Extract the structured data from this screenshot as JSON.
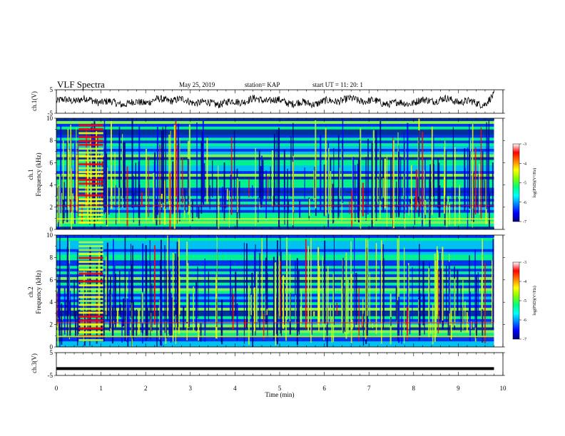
{
  "header": {
    "title": "VLF Spectra",
    "date": "May 25, 2019",
    "station": "station= KAP",
    "start": "start  UT  =   11: 20: 1"
  },
  "colors": {
    "scale": [
      "#00008b",
      "#0000ff",
      "#00bfff",
      "#00ff7f",
      "#adff2f",
      "#ffff00",
      "#ff7f00",
      "#ff0000"
    ],
    "trace": "#000000"
  },
  "chart_data": [
    {
      "type": "line",
      "panel": "ch1-waveform",
      "ylabel": "ch.1(V)",
      "ylim": [
        -5,
        5
      ],
      "yticks": [
        "5",
        "-5"
      ],
      "xlim": [
        0,
        10
      ],
      "description_of_series": "noisy voltage trace oscillating roughly between -3 and +3 V across 0–9.8 min",
      "x": [
        0,
        0.5,
        1.0,
        1.5,
        2.0,
        2.5,
        3.0,
        3.5,
        4.0,
        4.5,
        5.0,
        5.5,
        6.0,
        6.5,
        7.0,
        7.5,
        8.0,
        8.5,
        9.0,
        9.5,
        9.8
      ],
      "values": [
        1.5,
        -0.8,
        0.5,
        -1.5,
        1.0,
        -0.5,
        0.8,
        -1.2,
        1.2,
        -0.6,
        0.3,
        -1.4,
        1.1,
        -0.4,
        0.9,
        -1.0,
        0.6,
        -0.9,
        0.4,
        -1.1,
        3.5
      ]
    },
    {
      "type": "heatmap",
      "panel": "ch1-spectrogram",
      "ylabel": "ch.1",
      "ylabel2": "Frequency (kHz)",
      "ylim": [
        0,
        10
      ],
      "yticks": [
        "0",
        "2",
        "4",
        "6",
        "8",
        "10"
      ],
      "xlim": [
        0,
        10
      ],
      "colorbar": {
        "label": "log(PSD)(V²/Hz)",
        "range": [
          -7,
          -3
        ],
        "ticks": [
          "-3",
          "-4",
          "-5",
          "-6",
          "-7"
        ]
      }
    },
    {
      "type": "heatmap",
      "panel": "ch2-spectrogram",
      "ylabel": "ch.2",
      "ylabel2": "Frequency (kHz)",
      "ylim": [
        0,
        10
      ],
      "yticks": [
        "0",
        "2",
        "4",
        "6",
        "8",
        "10"
      ],
      "xlim": [
        0,
        10
      ],
      "colorbar": {
        "label": "log(PSD)(V²/Hz)",
        "range": [
          -7,
          -3
        ],
        "ticks": [
          "-3",
          "-4",
          "-5",
          "-6",
          "-7"
        ]
      }
    },
    {
      "type": "line",
      "panel": "ch3-waveform",
      "ylabel": "ch.3(V)",
      "ylim": [
        -5,
        5
      ],
      "yticks": [
        "5",
        "-5"
      ],
      "xlim": [
        0,
        10
      ],
      "x": [
        0,
        9.8
      ],
      "values": [
        -2,
        -2
      ]
    }
  ],
  "xaxis": {
    "label": "Time  (min)",
    "ticks": [
      "0",
      "1",
      "2",
      "3",
      "4",
      "5",
      "6",
      "7",
      "8",
      "9",
      "10"
    ]
  }
}
